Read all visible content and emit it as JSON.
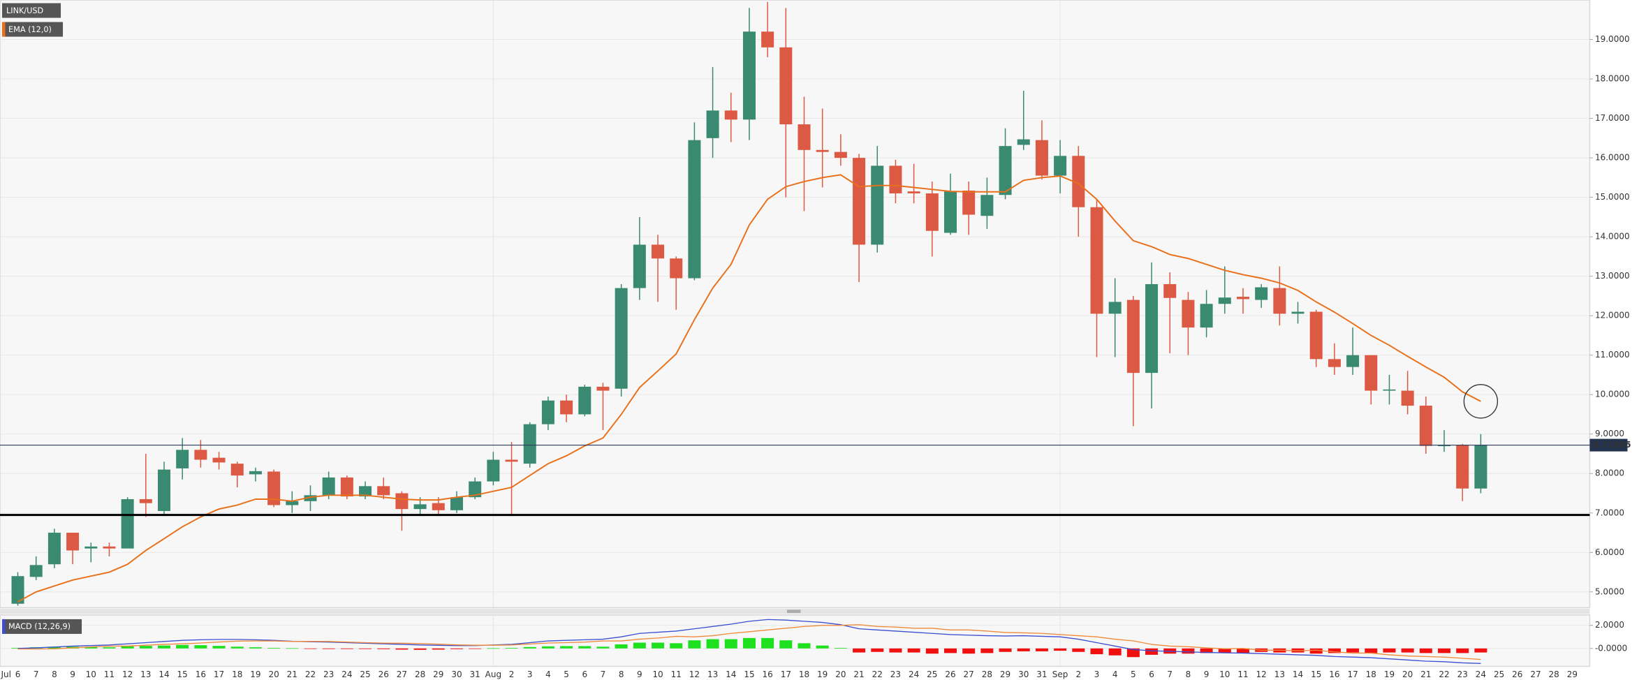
{
  "chart_data": [
    {
      "type": "candlestick",
      "title": "LINK/USD",
      "month_label": "Jul",
      "categories": [
        "6",
        "7",
        "8",
        "9",
        "10",
        "11",
        "12",
        "13",
        "14",
        "15",
        "16",
        "17",
        "18",
        "19",
        "20",
        "21",
        "22",
        "23",
        "24",
        "25",
        "26",
        "27",
        "28",
        "29",
        "30",
        "31",
        "Aug",
        "2",
        "3",
        "4",
        "5",
        "6",
        "7",
        "8",
        "9",
        "10",
        "11",
        "12",
        "13",
        "14",
        "15",
        "16",
        "17",
        "18",
        "19",
        "20",
        "21",
        "22",
        "23",
        "24",
        "25",
        "26",
        "27",
        "28",
        "29",
        "30",
        "31",
        "Sep",
        "2",
        "3",
        "4",
        "5",
        "6",
        "7",
        "8",
        "9",
        "10",
        "11",
        "12",
        "13",
        "14",
        "15",
        "16",
        "17",
        "18",
        "19",
        "20",
        "21",
        "22",
        "23",
        "24",
        "25",
        "26",
        "27",
        "28",
        "29"
      ],
      "open": [
        4.7,
        5.38,
        5.7,
        6.5,
        6.1,
        6.15,
        6.1,
        7.35,
        7.05,
        8.13,
        8.6,
        8.4,
        8.25,
        7.98,
        8.05,
        7.2,
        7.3,
        7.45,
        7.9,
        7.42,
        7.68,
        7.5,
        7.1,
        7.25,
        7.07,
        7.4,
        7.8,
        8.35,
        8.25,
        9.25,
        9.85,
        9.5,
        10.2,
        10.15,
        12.7,
        13.8,
        13.45,
        12.95,
        16.5,
        17.2,
        16.97,
        19.2,
        18.8,
        16.85,
        16.2,
        16.15,
        16.0,
        13.8,
        15.8,
        15.15,
        15.1,
        14.1,
        15.17,
        14.53,
        15.06,
        16.33,
        16.45,
        15.55,
        16.05,
        14.75,
        12.05,
        12.4,
        10.55,
        12.8,
        12.4,
        11.7,
        12.3,
        12.48,
        12.4,
        12.7,
        12.05,
        12.1,
        10.9,
        10.7,
        11.0,
        10.1,
        10.1,
        9.72,
        8.7,
        8.72,
        7.62,
        null,
        null,
        null,
        null,
        null
      ],
      "high": [
        5.5,
        5.9,
        6.6,
        6.5,
        6.25,
        6.25,
        7.4,
        8.5,
        8.3,
        8.9,
        8.85,
        8.55,
        8.3,
        8.15,
        8.1,
        7.55,
        7.7,
        8.05,
        7.95,
        7.8,
        7.9,
        7.55,
        7.4,
        7.4,
        7.55,
        7.9,
        8.55,
        8.8,
        9.3,
        9.95,
        10.0,
        10.25,
        10.3,
        12.8,
        14.5,
        14.05,
        13.5,
        16.9,
        18.3,
        17.65,
        19.8,
        19.95,
        19.8,
        17.55,
        17.25,
        16.6,
        16.1,
        16.3,
        15.95,
        15.85,
        15.4,
        15.6,
        15.4,
        15.5,
        16.75,
        17.7,
        16.95,
        16.45,
        16.3,
        14.95,
        12.95,
        12.5,
        13.35,
        13.1,
        12.6,
        12.65,
        13.25,
        12.7,
        12.8,
        13.25,
        12.35,
        12.15,
        11.3,
        11.7,
        11.0,
        10.5,
        10.6,
        9.95,
        9.1,
        8.75,
        9.0,
        null,
        null,
        null,
        null,
        null
      ],
      "low": [
        4.65,
        5.3,
        5.6,
        5.7,
        5.75,
        5.9,
        6.1,
        6.9,
        6.95,
        7.85,
        8.15,
        8.1,
        7.65,
        7.8,
        7.15,
        7.0,
        7.05,
        7.35,
        7.35,
        7.35,
        7.35,
        6.55,
        6.95,
        6.95,
        7.0,
        7.35,
        7.7,
        6.95,
        8.15,
        9.1,
        9.3,
        9.45,
        9.1,
        9.95,
        12.4,
        12.35,
        12.15,
        12.9,
        16.0,
        16.4,
        16.45,
        18.55,
        15.0,
        14.65,
        15.25,
        15.8,
        12.85,
        13.6,
        14.85,
        14.85,
        13.5,
        14.05,
        14.05,
        14.2,
        14.95,
        16.2,
        15.45,
        15.1,
        14.0,
        10.95,
        10.95,
        9.2,
        9.65,
        11.05,
        11.0,
        11.45,
        12.05,
        12.05,
        12.2,
        11.75,
        11.8,
        10.7,
        10.5,
        10.5,
        9.75,
        9.75,
        9.5,
        8.5,
        8.55,
        7.3,
        7.5,
        null,
        null,
        null,
        null,
        null
      ],
      "close": [
        5.4,
        5.68,
        6.5,
        6.05,
        6.15,
        6.1,
        7.35,
        7.25,
        8.1,
        8.6,
        8.35,
        8.28,
        7.95,
        8.06,
        7.2,
        7.3,
        7.45,
        7.9,
        7.42,
        7.68,
        7.45,
        7.1,
        7.22,
        7.07,
        7.4,
        7.8,
        8.35,
        8.3,
        9.25,
        9.85,
        9.5,
        10.2,
        10.1,
        12.7,
        13.8,
        13.45,
        12.95,
        16.45,
        17.2,
        16.97,
        19.2,
        18.8,
        16.85,
        16.2,
        16.15,
        16.0,
        13.8,
        15.8,
        15.1,
        15.1,
        14.15,
        15.15,
        14.56,
        15.06,
        16.3,
        16.47,
        15.55,
        16.05,
        14.75,
        12.05,
        12.35,
        10.55,
        12.8,
        12.45,
        11.7,
        12.3,
        12.46,
        12.42,
        12.72,
        12.05,
        12.1,
        10.9,
        10.7,
        11.0,
        10.1,
        10.13,
        9.72,
        8.7,
        8.72,
        7.62,
        8.72,
        null,
        null,
        null,
        null,
        null
      ],
      "up_color": "#3a8a72",
      "down_color": "#dc5a43",
      "series": [
        {
          "name": "EMA (12,0)",
          "color": "#e8701a",
          "values": [
            4.75,
            5.0,
            5.15,
            5.3,
            5.4,
            5.5,
            5.7,
            6.05,
            6.35,
            6.65,
            6.9,
            7.1,
            7.2,
            7.35,
            7.35,
            7.3,
            7.4,
            7.45,
            7.45,
            7.45,
            7.4,
            7.35,
            7.33,
            7.33,
            7.4,
            7.45,
            7.55,
            7.65,
            7.95,
            8.25,
            8.45,
            8.7,
            8.9,
            9.5,
            10.18,
            10.6,
            11.03,
            11.9,
            12.7,
            13.3,
            14.3,
            14.95,
            15.27,
            15.4,
            15.5,
            15.57,
            15.27,
            15.3,
            15.3,
            15.25,
            15.2,
            15.15,
            15.14,
            15.14,
            15.14,
            15.43,
            15.5,
            15.54,
            15.35,
            14.95,
            14.4,
            13.9,
            13.75,
            13.55,
            13.45,
            13.3,
            13.15,
            13.04,
            12.95,
            12.83,
            12.64,
            12.35,
            12.09,
            11.8,
            11.5,
            11.25,
            10.97,
            10.7,
            10.44,
            10.07,
            9.83,
            null,
            null,
            null,
            null,
            null
          ]
        }
      ],
      "ylim": [
        4.6,
        20.0
      ],
      "yticks": [
        {
          "value": 5,
          "label": "5.0000"
        },
        {
          "value": 6,
          "label": "6.0000"
        },
        {
          "value": 7,
          "label": "7.0000"
        },
        {
          "value": 8,
          "label": "8.0000"
        },
        {
          "value": 9,
          "label": "9.0000"
        },
        {
          "value": 10,
          "label": "10.0000"
        },
        {
          "value": 11,
          "label": "11.0000"
        },
        {
          "value": 12,
          "label": "12.0000"
        },
        {
          "value": 13,
          "label": "13.0000"
        },
        {
          "value": 14,
          "label": "14.0000"
        },
        {
          "value": 15,
          "label": "15.0000"
        },
        {
          "value": 16,
          "label": "16.0000"
        },
        {
          "value": 17,
          "label": "17.0000"
        },
        {
          "value": 18,
          "label": "18.0000"
        },
        {
          "value": 19,
          "label": "19.0000"
        }
      ],
      "last_price": {
        "value": 8.71965,
        "label": "8.71965"
      },
      "support_level": 6.95,
      "grid": true
    },
    {
      "type": "macd",
      "title": "MACD (12,26,9)",
      "histogram": [
        0.05,
        0.1,
        0.15,
        0.15,
        0.12,
        0.1,
        0.2,
        0.22,
        0.25,
        0.3,
        0.28,
        0.22,
        0.15,
        0.1,
        0.05,
        0.02,
        -0.03,
        -0.05,
        -0.05,
        -0.05,
        -0.06,
        -0.1,
        -0.12,
        -0.1,
        -0.06,
        -0.03,
        0.02,
        0.05,
        0.12,
        0.18,
        0.2,
        0.2,
        0.15,
        0.35,
        0.5,
        0.5,
        0.45,
        0.7,
        0.8,
        0.8,
        0.9,
        0.9,
        0.7,
        0.45,
        0.25,
        0.05,
        -0.35,
        -0.3,
        -0.35,
        -0.35,
        -0.45,
        -0.4,
        -0.45,
        -0.4,
        -0.3,
        -0.25,
        -0.25,
        -0.2,
        -0.3,
        -0.5,
        -0.6,
        -0.75,
        -0.55,
        -0.45,
        -0.45,
        -0.4,
        -0.35,
        -0.4,
        -0.3,
        -0.35,
        -0.35,
        -0.45,
        -0.4,
        -0.35,
        -0.4,
        -0.35,
        -0.35,
        -0.4,
        -0.4,
        -0.4,
        -0.35,
        null,
        null,
        null,
        null,
        null
      ],
      "up_color": "#1ee01e",
      "down_color": "#f01010",
      "series": [
        {
          "color": "#3b4fd0",
          "values": [
            0.0,
            0.05,
            0.12,
            0.2,
            0.25,
            0.3,
            0.4,
            0.5,
            0.6,
            0.7,
            0.75,
            0.78,
            0.78,
            0.75,
            0.7,
            0.62,
            0.58,
            0.55,
            0.5,
            0.45,
            0.4,
            0.35,
            0.3,
            0.27,
            0.25,
            0.25,
            0.3,
            0.35,
            0.5,
            0.65,
            0.7,
            0.75,
            0.8,
            1.0,
            1.3,
            1.4,
            1.5,
            1.7,
            1.9,
            2.1,
            2.35,
            2.5,
            2.45,
            2.35,
            2.25,
            2.05,
            1.7,
            1.6,
            1.5,
            1.4,
            1.3,
            1.2,
            1.15,
            1.1,
            1.08,
            1.1,
            1.05,
            1.0,
            0.8,
            0.5,
            0.2,
            -0.1,
            -0.2,
            -0.25,
            -0.3,
            -0.35,
            -0.38,
            -0.4,
            -0.45,
            -0.5,
            -0.55,
            -0.6,
            -0.7,
            -0.75,
            -0.8,
            -0.9,
            -1.0,
            -1.1,
            -1.15,
            -1.25,
            -1.3,
            null,
            null,
            null,
            null,
            null
          ]
        },
        {
          "color": "#f08a3a",
          "values": [
            -0.05,
            -0.05,
            -0.03,
            0.05,
            0.13,
            0.2,
            0.2,
            0.28,
            0.35,
            0.4,
            0.47,
            0.56,
            0.63,
            0.65,
            0.65,
            0.6,
            0.61,
            0.6,
            0.55,
            0.5,
            0.46,
            0.45,
            0.42,
            0.37,
            0.31,
            0.28,
            0.28,
            0.3,
            0.38,
            0.47,
            0.5,
            0.55,
            0.65,
            0.65,
            0.8,
            0.9,
            1.05,
            1.0,
            1.1,
            1.3,
            1.45,
            1.6,
            1.75,
            1.9,
            2.0,
            2.0,
            2.05,
            1.9,
            1.85,
            1.75,
            1.75,
            1.6,
            1.6,
            1.5,
            1.38,
            1.35,
            1.3,
            1.2,
            1.1,
            1.0,
            0.8,
            0.65,
            0.35,
            0.2,
            0.15,
            0.05,
            -0.03,
            0.0,
            -0.15,
            -0.15,
            -0.2,
            -0.15,
            -0.3,
            -0.4,
            -0.4,
            -0.55,
            -0.65,
            -0.7,
            -0.75,
            -0.85,
            -0.95,
            null,
            null,
            null,
            null,
            null
          ]
        }
      ],
      "ylim": [
        -1.55,
        2.8
      ],
      "yticks": [
        {
          "value": 2,
          "label": "2.0000"
        },
        {
          "value": 0,
          "label": "-0.0000"
        }
      ]
    }
  ]
}
